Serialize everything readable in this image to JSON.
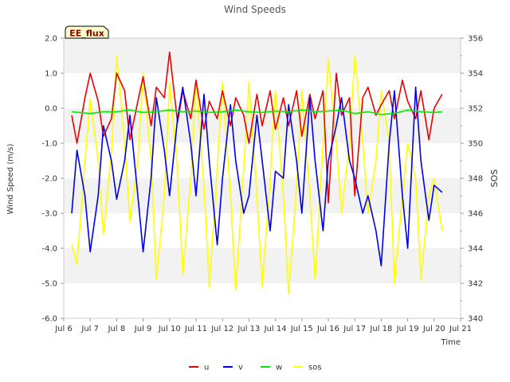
{
  "chart_data": {
    "type": "line",
    "title": "Wind Speeds",
    "site_label": "EE_flux",
    "xlabel": "Time",
    "ylabel_left": "Wind Speed (m/s)",
    "ylabel_right": "SOS",
    "x_ticks": [
      "Jul 6",
      "Jul 7",
      "Jul 8",
      "Jul 9",
      "Jul 10",
      "Jul 11",
      "Jul 12",
      "Jul 13",
      "Jul 14",
      "Jul 15",
      "Jul 16",
      "Jul 17",
      "Jul 18",
      "Jul 19",
      "Jul 20",
      "Jul 21"
    ],
    "x_range_days": [
      6,
      21
    ],
    "ylim_left": [
      -6.0,
      2.0
    ],
    "y_ticks_left": [
      "2.0",
      "1.0",
      "0.0",
      "-1.0",
      "-2.0",
      "-3.0",
      "-4.0",
      "-5.0",
      "-6.0"
    ],
    "ylim_right": [
      340,
      356
    ],
    "y_ticks_right": [
      "356",
      "354",
      "352",
      "350",
      "348",
      "346",
      "344",
      "342",
      "340"
    ],
    "grid": "horizontal bands",
    "legend_position": "bottom",
    "series": [
      {
        "name": "u",
        "axis": "left",
        "color": "#ee0000",
        "x": [
          6.3,
          6.5,
          6.8,
          7.0,
          7.3,
          7.5,
          7.8,
          8.0,
          8.3,
          8.5,
          8.8,
          9.0,
          9.3,
          9.5,
          9.8,
          10.0,
          10.3,
          10.5,
          10.8,
          11.0,
          11.3,
          11.5,
          11.8,
          12.0,
          12.3,
          12.5,
          12.8,
          13.0,
          13.3,
          13.5,
          13.8,
          14.0,
          14.3,
          14.5,
          14.8,
          15.0,
          15.3,
          15.5,
          15.8,
          16.0,
          16.3,
          16.5,
          16.8,
          17.0,
          17.3,
          17.5,
          17.8,
          18.0,
          18.3,
          18.5,
          18.8,
          19.0,
          19.3,
          19.5,
          19.8,
          20.0,
          20.3
        ],
        "y": [
          -0.2,
          -1.0,
          0.3,
          1.0,
          0.2,
          -0.8,
          -0.3,
          1.0,
          0.5,
          -0.9,
          0.2,
          0.9,
          -0.5,
          0.6,
          0.3,
          1.6,
          -0.4,
          0.5,
          -0.3,
          0.8,
          -0.6,
          0.2,
          -0.3,
          0.5,
          -0.5,
          0.3,
          -0.2,
          -1.0,
          0.4,
          -0.5,
          0.5,
          -0.6,
          0.3,
          -0.5,
          0.5,
          -0.8,
          0.4,
          -0.3,
          0.5,
          -2.7,
          1.0,
          -0.2,
          0.3,
          -2.5,
          0.3,
          0.6,
          -0.2,
          0.1,
          0.5,
          -0.3,
          0.8,
          0.2,
          -0.3,
          0.5,
          -0.9,
          0.0,
          0.4
        ]
      },
      {
        "name": "v",
        "axis": "left",
        "color": "#0000ee",
        "x": [
          6.3,
          6.5,
          6.8,
          7.0,
          7.3,
          7.5,
          7.8,
          8.0,
          8.3,
          8.5,
          8.8,
          9.0,
          9.3,
          9.5,
          9.8,
          10.0,
          10.3,
          10.5,
          10.8,
          11.0,
          11.3,
          11.5,
          11.8,
          12.0,
          12.3,
          12.5,
          12.8,
          13.0,
          13.3,
          13.5,
          13.8,
          14.0,
          14.3,
          14.5,
          14.8,
          15.0,
          15.3,
          15.5,
          15.8,
          16.0,
          16.3,
          16.5,
          16.8,
          17.0,
          17.3,
          17.5,
          17.8,
          18.0,
          18.3,
          18.5,
          18.8,
          19.0,
          19.3,
          19.5,
          19.8,
          20.0,
          20.3
        ],
        "y": [
          -3.0,
          -1.2,
          -2.5,
          -4.1,
          -2.5,
          -0.5,
          -1.5,
          -2.6,
          -1.5,
          -0.2,
          -2.5,
          -4.1,
          -2.0,
          0.3,
          -1.2,
          -2.5,
          -0.3,
          0.6,
          -1.0,
          -2.5,
          0.4,
          -1.5,
          -3.9,
          -2.0,
          0.1,
          -1.5,
          -3.0,
          -2.5,
          -0.2,
          -1.5,
          -3.5,
          -1.8,
          -2.0,
          0.1,
          -1.5,
          -3.0,
          0.3,
          -1.5,
          -3.5,
          -1.5,
          -0.5,
          0.3,
          -1.5,
          -2.0,
          -3.0,
          -2.5,
          -3.5,
          -4.5,
          -1.0,
          0.5,
          -2.5,
          -4.0,
          0.6,
          -1.5,
          -3.2,
          -2.2,
          -2.4
        ]
      },
      {
        "name": "w",
        "axis": "left",
        "color": "#00ee00",
        "x": [
          6.3,
          7.0,
          7.5,
          8.0,
          8.5,
          9.0,
          9.5,
          10.0,
          10.5,
          11.0,
          11.5,
          12.0,
          12.5,
          13.0,
          13.5,
          14.0,
          14.5,
          15.0,
          15.5,
          16.0,
          16.5,
          17.0,
          17.5,
          18.0,
          18.5,
          19.0,
          19.5,
          20.0,
          20.3
        ],
        "y": [
          -0.1,
          -0.15,
          -0.1,
          -0.1,
          -0.05,
          -0.12,
          -0.1,
          -0.05,
          -0.1,
          -0.08,
          -0.12,
          -0.1,
          -0.05,
          -0.1,
          -0.12,
          -0.08,
          -0.1,
          -0.05,
          -0.1,
          -0.08,
          -0.05,
          -0.15,
          -0.1,
          -0.18,
          -0.15,
          -0.05,
          -0.1,
          -0.12,
          -0.1
        ]
      },
      {
        "name": "sos",
        "axis": "right",
        "color": "#ffff00",
        "x": [
          6.3,
          6.5,
          6.8,
          7.0,
          7.3,
          7.5,
          7.8,
          8.0,
          8.3,
          8.5,
          8.8,
          9.0,
          9.3,
          9.5,
          9.8,
          10.0,
          10.3,
          10.5,
          10.8,
          11.0,
          11.3,
          11.5,
          11.8,
          12.0,
          12.3,
          12.5,
          12.8,
          13.0,
          13.3,
          13.5,
          13.8,
          14.0,
          14.3,
          14.5,
          14.8,
          15.0,
          15.3,
          15.5,
          15.8,
          16.0,
          16.3,
          16.5,
          16.8,
          17.0,
          17.3,
          17.5,
          17.8,
          18.0,
          18.3,
          18.5,
          18.8,
          19.0,
          19.3,
          19.5,
          19.8,
          20.0,
          20.3
        ],
        "y": [
          344.2,
          343.1,
          349.0,
          352.5,
          349.0,
          344.8,
          349.5,
          355.0,
          350.0,
          345.5,
          349.0,
          354.0,
          349.0,
          342.2,
          347.0,
          353.5,
          348.5,
          342.5,
          348.0,
          353.5,
          347.5,
          341.8,
          348.5,
          353.5,
          347.0,
          341.6,
          348.5,
          353.5,
          347.0,
          341.8,
          348.0,
          353.0,
          347.0,
          341.4,
          347.5,
          353.0,
          347.0,
          342.2,
          350.0,
          354.8,
          350.0,
          346.0,
          350.0,
          355.0,
          350.0,
          346.0,
          349.0,
          353.0,
          350.0,
          342.0,
          347.0,
          350.0,
          348.0,
          342.2,
          347.0,
          348.0,
          345.0
        ]
      }
    ]
  }
}
